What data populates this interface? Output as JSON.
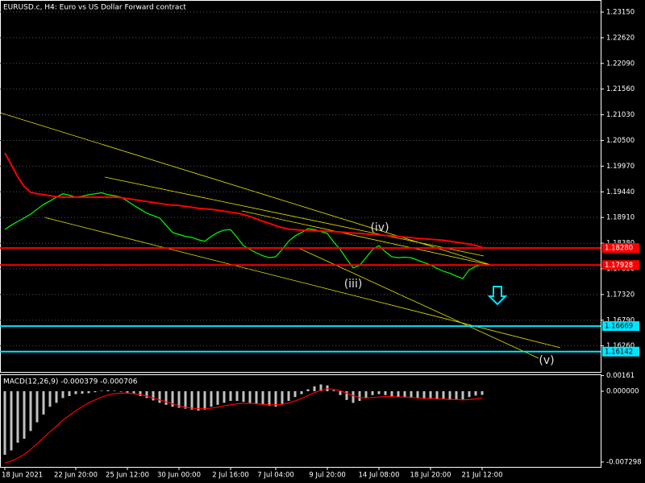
{
  "chart_data": [
    {
      "type": "line",
      "title": "EURUSD.c, H4:  Euro vs US Dollar Forward contract",
      "categories": [
        "18 Jun 2021",
        null,
        null,
        null,
        null,
        null,
        null,
        null,
        null,
        null,
        null,
        "22 Jun 20:00",
        null,
        null,
        null,
        null,
        null,
        null,
        null,
        "25 Jun 12:00",
        null,
        null,
        null,
        null,
        null,
        null,
        null,
        "30 Jun 00:00",
        null,
        null,
        null,
        null,
        null,
        null,
        null,
        "2 Jul 16:00",
        null,
        null,
        null,
        null,
        null,
        null,
        "7 Jul 04:00",
        null,
        null,
        null,
        null,
        null,
        null,
        null,
        "9 Jul 20:00",
        null,
        null,
        null,
        null,
        null,
        null,
        null,
        "14 Jul 08:00",
        null,
        null,
        null,
        null,
        null,
        null,
        null,
        "18 Jul 20:00",
        null,
        null,
        null,
        null,
        null,
        null,
        null,
        "21 Jul 12:00"
      ],
      "series": [
        {
          "color": "#00ff00",
          "values": [
            1.18664,
            1.1875,
            1.1883,
            1.189,
            1.1898,
            1.1908,
            1.1918,
            1.1925,
            1.1933,
            1.194,
            1.1937,
            1.1933,
            1.1935,
            1.1938,
            1.194,
            1.1942,
            1.1938,
            1.1936,
            1.1933,
            1.1925,
            1.1916,
            1.1908,
            1.19,
            1.1895,
            1.189,
            1.1875,
            1.186,
            1.1856,
            1.1852,
            1.185,
            1.1845,
            1.1842,
            1.1852,
            1.186,
            1.1865,
            1.1866,
            1.185,
            1.1833,
            1.1825,
            1.1818,
            1.1812,
            1.1808,
            1.181,
            1.1825,
            1.1842,
            1.1853,
            1.186,
            1.1868,
            1.1866,
            1.1862,
            1.1858,
            1.184,
            1.1825,
            1.1805,
            1.1787,
            1.1792,
            1.1808,
            1.1825,
            1.1833,
            1.182,
            1.181,
            1.1808,
            1.1809,
            1.1808,
            1.1803,
            1.1798,
            1.1793,
            1.1786,
            1.178,
            1.1776,
            1.177,
            1.1765,
            1.1783,
            1.179,
            1.1793
          ]
        },
        {
          "color": "#ff0000",
          "values": [
            1.20243,
            1.2,
            1.1975,
            1.1955,
            1.1943,
            1.194,
            1.1938,
            1.1936,
            1.1934,
            1.1933,
            1.1933,
            1.1933,
            1.1933,
            1.1933,
            1.1933,
            1.1933,
            1.1933,
            1.1933,
            1.1932,
            1.193,
            1.1928,
            1.1926,
            1.1924,
            1.1922,
            1.192,
            1.1918,
            1.19165,
            1.1916,
            1.1914,
            1.1912,
            1.191,
            1.1909,
            1.1908,
            1.1906,
            1.1904,
            1.1902,
            1.19,
            1.1897,
            1.1893,
            1.1888,
            1.1883,
            1.1879,
            1.1874,
            1.187,
            1.1867,
            1.1866,
            1.1865,
            1.1864,
            1.18635,
            1.1863,
            1.18625,
            1.1862,
            1.1861,
            1.186,
            1.1859,
            1.1858,
            1.1857,
            1.1856,
            1.1855,
            1.1854,
            1.1853,
            1.1852,
            1.18505,
            1.18495,
            1.1848,
            1.1847,
            1.1846,
            1.1845,
            1.1844,
            1.1842,
            1.184,
            1.1838,
            1.1836,
            1.1833,
            1.183
          ]
        }
      ],
      "ylim": [
        1.15723,
        1.23399
      ],
      "yticks": [
        {
          "value": 1.2315,
          "label": "1.23150"
        },
        {
          "value": 1.2262,
          "label": "1.22620"
        },
        {
          "value": 1.2209,
          "label": "1.22090"
        },
        {
          "value": 1.2156,
          "label": "1.21560"
        },
        {
          "value": 1.2103,
          "label": "1.21030"
        },
        {
          "value": 1.205,
          "label": "1.20500"
        },
        {
          "value": 1.1997,
          "label": "1.19970"
        },
        {
          "value": 1.1944,
          "label": "1.19440"
        },
        {
          "value": 1.1891,
          "label": "1.18910"
        },
        {
          "value": 1.1838,
          "label": "1.18380"
        },
        {
          "value": 1.1785,
          "label": "1.17850"
        },
        {
          "value": 1.1732,
          "label": "1.17320"
        },
        {
          "value": 1.1679,
          "label": "1.16790"
        },
        {
          "value": 1.1626,
          "label": "1.16260"
        }
      ],
      "levels": [
        {
          "value": 1.1828,
          "label": "1.18280",
          "color": "#ff0000"
        },
        {
          "value": 1.17928,
          "label": "1.17928",
          "color": "#ff0000"
        },
        {
          "value": 1.16669,
          "label": "1.16669",
          "color": "#00e5ff"
        },
        {
          "value": 1.16142,
          "label": "1.16142",
          "color": "#00e5ff"
        }
      ],
      "annotations": [
        "(iii)",
        "(iv)",
        "(v)"
      ],
      "grid": true
    },
    {
      "type": "bar",
      "title": "MACD(12,26,9) -0.000379 -0.000706",
      "series": [
        {
          "type": "bar",
          "color": "#c0c0c0",
          "values": [
            -0.00655,
            -0.0061,
            -0.0053,
            -0.0049,
            -0.0041,
            -0.0032,
            -0.0024,
            -0.0016,
            -0.0012,
            -0.0007,
            -0.0005,
            -0.0003,
            -0.00025,
            -0.0002,
            -0.0001,
            5e-05,
            0.0001,
            5e-05,
            -5e-05,
            -0.00015,
            -0.0003,
            -0.0005,
            -0.0007,
            -0.00095,
            -0.0012,
            -0.0014,
            -0.0016,
            -0.0017,
            -0.0018,
            -0.0019,
            -0.002,
            -0.0019,
            -0.0016,
            -0.0014,
            -0.0012,
            -0.001,
            -0.001,
            -0.0011,
            -0.0012,
            -0.0013,
            -0.0014,
            -0.0015,
            -0.0016,
            -0.0013,
            -0.001,
            -0.0006,
            -0.0003,
            0.0002,
            0.0005,
            0.0007,
            0.0006,
            0.0001,
            -0.0004,
            -0.0009,
            -0.0012,
            -0.001,
            -0.0007,
            -0.0004,
            -0.0003,
            -0.0004,
            -0.0005,
            -0.0006,
            -0.00065,
            -0.0007,
            -0.00075,
            -0.0008,
            -0.0008,
            -0.00085,
            -0.00085,
            -0.0009,
            -0.0009,
            -0.00085,
            -0.0006,
            -0.00045,
            -0.00038
          ]
        },
        {
          "type": "line",
          "color": "#ff0000",
          "values": [
            -0.0074,
            -0.0072,
            -0.0069,
            -0.0065,
            -0.006,
            -0.0054,
            -0.0048,
            -0.0042,
            -0.0036,
            -0.003,
            -0.0025,
            -0.002,
            -0.0016,
            -0.0012,
            -0.0009,
            -0.0006,
            -0.0004,
            -0.00025,
            -0.0002,
            -0.0002,
            -0.00025,
            -0.00035,
            -0.0005,
            -0.0007,
            -0.0009,
            -0.0011,
            -0.0013,
            -0.0015,
            -0.00165,
            -0.00175,
            -0.0018,
            -0.0018,
            -0.00175,
            -0.00165,
            -0.0015,
            -0.0014,
            -0.0013,
            -0.00125,
            -0.00125,
            -0.0013,
            -0.00135,
            -0.0014,
            -0.0014,
            -0.00135,
            -0.0012,
            -0.001,
            -0.00075,
            -0.00045,
            -0.00015,
            0.0001,
            0.00025,
            0.0002,
            5e-05,
            -0.0002,
            -0.00045,
            -0.00065,
            -0.0007,
            -0.00065,
            -0.0006,
            -0.00055,
            -0.00055,
            -0.0006,
            -0.0006,
            -0.00065,
            -0.0007,
            -0.00075,
            -0.00075,
            -0.0008,
            -0.0008,
            -0.00085,
            -0.00085,
            -0.0009,
            -0.00085,
            -0.0008,
            -0.0007
          ]
        }
      ],
      "ylim": [
        -0.0078,
        0.00174
      ],
      "yticks": [
        0.00161,
        {
          "value": 0,
          "label": "0.000000"
        },
        -0.007298
      ],
      "grid": false
    }
  ]
}
